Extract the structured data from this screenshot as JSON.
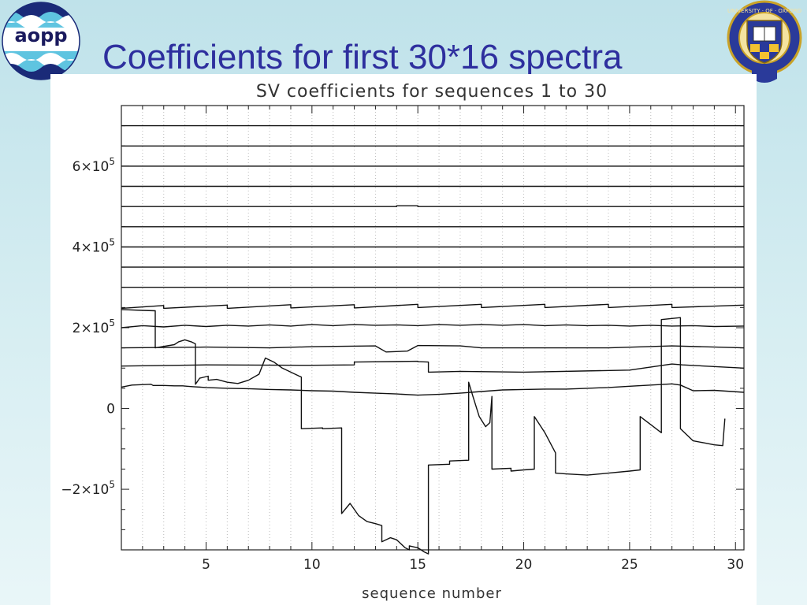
{
  "slide": {
    "title": "Coefficients for first 30*16 spectra",
    "logo_text": "aopp",
    "crest_text": "UNIVERSITY · OF · OXFORD"
  },
  "colors": {
    "title": "#2e2f9e",
    "line": "#111111",
    "grid": "#bbbbbb"
  },
  "chart_data": {
    "type": "line",
    "title": "SV coefficients for sequences 1 to 30",
    "xlabel": "sequence number",
    "ylabel": "",
    "xlim": [
      1,
      30.4
    ],
    "ylim": [
      -350000,
      750000
    ],
    "grid": true,
    "x_ticks": [
      5,
      10,
      15,
      20,
      25,
      30
    ],
    "x_tick_labels": [
      "5",
      "10",
      "15",
      "20",
      "25",
      "30"
    ],
    "y_ticks": [
      -200000,
      0,
      200000,
      400000,
      600000
    ],
    "y_tick_labels": [
      {
        "base": "−2×10",
        "exp": "5"
      },
      {
        "base": "0",
        "exp": ""
      },
      {
        "base": "2×10",
        "exp": "5"
      },
      {
        "base": "4×10",
        "exp": "5"
      },
      {
        "base": "6×10",
        "exp": "5"
      }
    ],
    "series": [
      {
        "x": [
          1,
          30.4
        ],
        "y": [
          700000,
          700000
        ]
      },
      {
        "x": [
          1,
          30.4
        ],
        "y": [
          650000,
          650000
        ]
      },
      {
        "x": [
          1,
          30.4
        ],
        "y": [
          600000,
          600000
        ]
      },
      {
        "x": [
          1,
          30.4
        ],
        "y": [
          550000,
          550000
        ]
      },
      {
        "x": [
          1,
          14,
          14,
          15,
          15,
          30.4
        ],
        "y": [
          500000,
          500000,
          502000,
          502000,
          500000,
          500000
        ]
      },
      {
        "x": [
          1,
          30.4
        ],
        "y": [
          450000,
          450000
        ]
      },
      {
        "x": [
          1,
          30.4
        ],
        "y": [
          400000,
          400000
        ]
      },
      {
        "x": [
          1,
          30.4
        ],
        "y": [
          350000,
          350000
        ]
      },
      {
        "x": [
          1,
          30.4
        ],
        "y": [
          300000,
          300000
        ]
      },
      {
        "x": [
          1,
          3,
          3,
          6,
          6,
          9,
          9,
          12,
          12,
          15,
          15,
          18,
          18,
          21,
          21,
          24,
          24,
          27,
          27,
          30.4
        ],
        "y": [
          248000,
          255000,
          248000,
          256000,
          248000,
          257000,
          249000,
          257000,
          249000,
          258000,
          250000,
          258000,
          250000,
          258000,
          250000,
          258000,
          250000,
          258000,
          250000,
          256000
        ]
      },
      {
        "x": [
          1,
          2,
          3,
          4,
          5,
          6,
          7,
          8,
          9,
          10,
          11,
          12,
          13,
          14,
          15,
          16,
          17,
          18,
          19,
          20,
          21,
          22,
          23,
          24,
          25,
          26,
          27,
          28,
          29,
          30.4
        ],
        "y": [
          200000,
          205000,
          202000,
          206000,
          203000,
          206000,
          204000,
          207000,
          204000,
          208000,
          205000,
          208000,
          206000,
          207000,
          205000,
          208000,
          206000,
          208000,
          206000,
          208000,
          205000,
          207000,
          205000,
          206000,
          204000,
          206000,
          204000,
          205000,
          203000,
          204000
        ]
      },
      {
        "x": [
          1,
          5,
          8,
          10,
          13,
          13.5,
          14.5,
          15,
          17,
          18,
          21,
          24,
          27,
          30.4
        ],
        "y": [
          150000,
          152000,
          150000,
          153000,
          155000,
          140000,
          142000,
          156000,
          155000,
          150000,
          150000,
          150000,
          155000,
          150000
        ]
      },
      {
        "x": [
          1,
          5,
          10,
          12,
          12,
          15,
          15,
          15.5,
          15.5,
          17,
          20,
          25,
          27,
          27.5,
          30.4
        ],
        "y": [
          105000,
          108000,
          107000,
          108000,
          115000,
          117000,
          116000,
          115000,
          90000,
          92000,
          90000,
          95000,
          110000,
          108000,
          100000
        ]
      },
      {
        "x": [
          1,
          1.5,
          2.4,
          2.5,
          3,
          3.5,
          3.9,
          4.1,
          4.4,
          5,
          6,
          7,
          8,
          9,
          10,
          11,
          12,
          13,
          14,
          15,
          16,
          17,
          18,
          19,
          20,
          21,
          22,
          23,
          24,
          25,
          26,
          27,
          27.4,
          28,
          29,
          30.4
        ],
        "y": [
          53000,
          58000,
          60000,
          57000,
          57000,
          56000,
          56000,
          55000,
          54000,
          52000,
          50000,
          49000,
          47000,
          46000,
          44000,
          43000,
          40000,
          38000,
          36000,
          33000,
          35000,
          38000,
          42000,
          46000,
          47000,
          48000,
          48000,
          50000,
          52000,
          55000,
          58000,
          61000,
          58000,
          44000,
          45000,
          40000
        ]
      },
      {
        "x": [
          1,
          2,
          2.6,
          2.6,
          3.5,
          3.7,
          4,
          4.3,
          4.5,
          4.5,
          4.7,
          5.1,
          5.1,
          5.5,
          6,
          6.5,
          7,
          7.5,
          7.8,
          8.2,
          8.6,
          9,
          9.4,
          9.5,
          9.5,
          10.5,
          10.5,
          11.4,
          11.4,
          11.8,
          12.2,
          12.6,
          13,
          13.3,
          13.3,
          13.7,
          14,
          14.4,
          14.6,
          14.6,
          15,
          15.3,
          15.5,
          15.5,
          16.5,
          16.5,
          17.4,
          17.4,
          17.6,
          17.9,
          18.2,
          18.4,
          18.5,
          18.5,
          19.4,
          19.4,
          20,
          20.5,
          20.5,
          21,
          21.5,
          21.5,
          22,
          23,
          24,
          25,
          25.5,
          25.5,
          26,
          26.5,
          26.5,
          27.4,
          27.4,
          28,
          28.5,
          29,
          29.4,
          29.5
        ],
        "y": [
          245000,
          243000,
          242000,
          150000,
          158000,
          165000,
          170000,
          165000,
          160000,
          60000,
          75000,
          80000,
          70000,
          72000,
          65000,
          62000,
          70000,
          85000,
          125000,
          115000,
          100000,
          90000,
          80000,
          78000,
          -50000,
          -48000,
          -50000,
          -48000,
          -260000,
          -235000,
          -265000,
          -280000,
          -285000,
          -290000,
          -330000,
          -320000,
          -325000,
          -345000,
          -350000,
          -340000,
          -345000,
          -355000,
          -360000,
          -140000,
          -138000,
          -130000,
          -128000,
          65000,
          30000,
          -20000,
          -45000,
          -35000,
          30000,
          -150000,
          -148000,
          -155000,
          -152000,
          -150000,
          -20000,
          -60000,
          -110000,
          -160000,
          -162000,
          -165000,
          -160000,
          -155000,
          -152000,
          -20000,
          -40000,
          -60000,
          220000,
          225000,
          -50000,
          -80000,
          -85000,
          -90000,
          -92000,
          -25000
        ]
      }
    ]
  }
}
